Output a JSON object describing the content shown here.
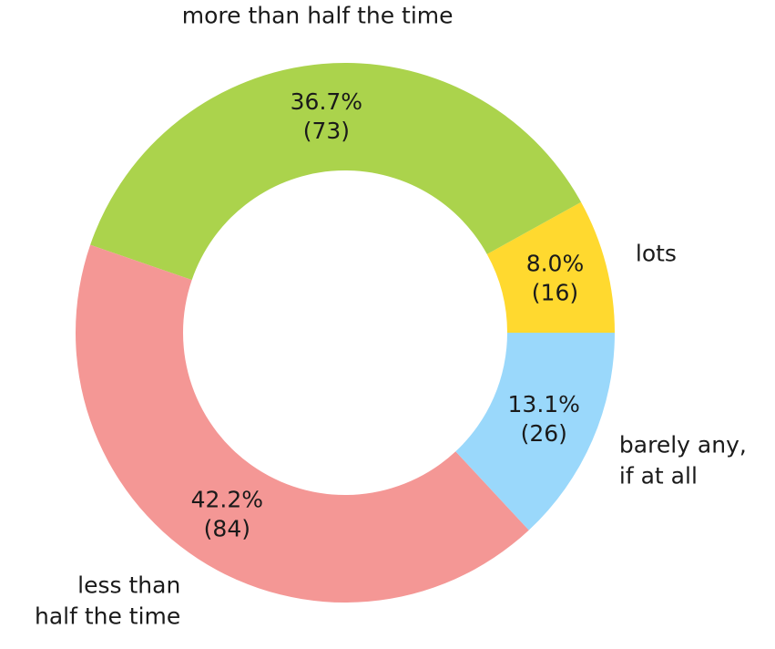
{
  "chart_data": {
    "type": "pie",
    "donut": true,
    "title": "",
    "slices": [
      {
        "label": "lots",
        "label_lines": [
          "lots"
        ],
        "value": 16,
        "percent": "8.0%",
        "count": "(16)",
        "color": "#FFD92F"
      },
      {
        "label": "more than half the time",
        "label_lines": [
          "more than half the time"
        ],
        "value": 73,
        "percent": "36.7%",
        "count": "(73)",
        "color": "#ABD34C"
      },
      {
        "label": "less than half the time",
        "label_lines": [
          "less than",
          "half the time"
        ],
        "value": 84,
        "percent": "42.2%",
        "count": "(84)",
        "color": "#F49795"
      },
      {
        "label": "barely any, if at all",
        "label_lines": [
          "barely any,",
          "if at all"
        ],
        "value": 26,
        "percent": "13.1%",
        "count": "(26)",
        "color": "#9AD8FB"
      }
    ],
    "start_angle_deg": 0,
    "direction": "counterclockwise",
    "legend": "none"
  }
}
